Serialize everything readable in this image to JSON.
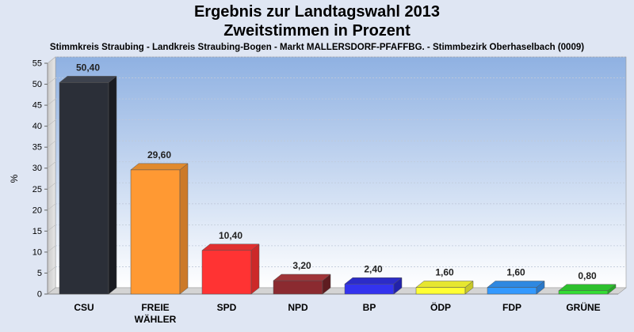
{
  "chart_data": {
    "type": "bar",
    "title": [
      "Ergebnis zur Landtagswahl 2013",
      "Zweitstimmen in Prozent"
    ],
    "subtitle": "Stimmkreis Straubing - Landkreis Straubing-Bogen - Markt MALLERSDORF-PFAFFBG. - Stimmbezirk Oberhaselbach (0009)",
    "ylabel": "%",
    "xlabel": "",
    "ylim": [
      0,
      55
    ],
    "yticks": [
      "0",
      "5",
      "10",
      "15",
      "20",
      "25",
      "30",
      "35",
      "40",
      "45",
      "50",
      "55"
    ],
    "grid": true,
    "categories": [
      {
        "label": "CSU",
        "label2": ""
      },
      {
        "label": "FREIE",
        "label2": "WÄHLER"
      },
      {
        "label": "SPD",
        "label2": ""
      },
      {
        "label": "NPD",
        "label2": ""
      },
      {
        "label": "BP",
        "label2": ""
      },
      {
        "label": "ÖDP",
        "label2": ""
      },
      {
        "label": "FDP",
        "label2": ""
      },
      {
        "label": "GRÜNE",
        "label2": ""
      }
    ],
    "values": [
      50.4,
      29.6,
      10.4,
      3.2,
      2.4,
      1.6,
      1.6,
      0.8
    ],
    "value_labels": [
      "50,40",
      "29,60",
      "10,40",
      "3,20",
      "2,40",
      "1,60",
      "1,60",
      "0,80"
    ],
    "colors": [
      "#2b2f38",
      "#ff9933",
      "#ff3333",
      "#8b2a30",
      "#3333ee",
      "#ffff33",
      "#3399ff",
      "#33dd33"
    ],
    "side_colors": [
      "#1a1c22",
      "#cc7a29",
      "#cc2929",
      "#5e1c20",
      "#2222aa",
      "#c8c828",
      "#2a78c8",
      "#27a827"
    ],
    "top_colors": [
      "#3d424d",
      "#e08a2e",
      "#e03030",
      "#a03438",
      "#2c2cc8",
      "#e6e630",
      "#2f88e0",
      "#2ec02e"
    ]
  }
}
